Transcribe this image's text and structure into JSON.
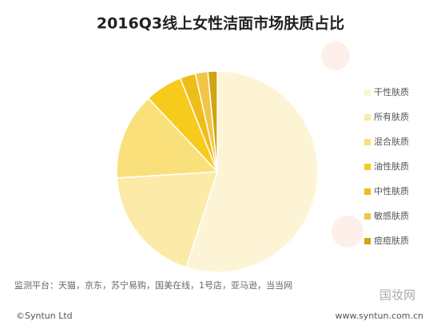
{
  "chart_data": {
    "type": "pie",
    "title": "2016Q3线上女性洁面市场肤质占比",
    "categories": [
      "干性肤质",
      "所有肤质",
      "混合肤质",
      "油性肤质",
      "中性肤质",
      "敏感肤质",
      "痘痘肤质"
    ],
    "values": [
      55,
      19,
      14,
      6,
      2.5,
      2,
      1.5
    ],
    "colors": [
      "#fdf4d6",
      "#fbeaa8",
      "#fae07a",
      "#f6cb1c",
      "#efbd1a",
      "#f2c548",
      "#cfa510"
    ],
    "legend": "right",
    "note": "监测平台：天猫，京东，苏宁易购，国美在线，1号店，亚马逊，当当网",
    "source": "©Syntun Ltd",
    "website": "www.syntun.com.cn",
    "watermark": "国妆网"
  }
}
